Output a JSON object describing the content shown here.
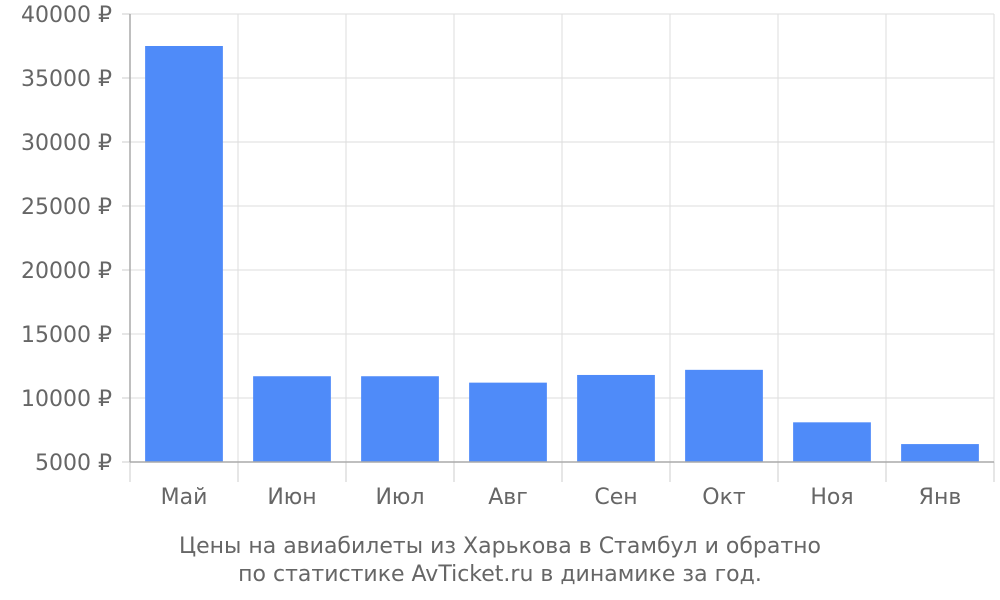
{
  "chart_data": {
    "type": "bar",
    "categories": [
      "Май",
      "Июн",
      "Июл",
      "Авг",
      "Сен",
      "Окт",
      "Ноя",
      "Янв"
    ],
    "values": [
      37500,
      11700,
      11700,
      11200,
      11800,
      12200,
      8100,
      6400
    ],
    "ylim": [
      5000,
      40000
    ],
    "yticks": [
      "5000 ₽",
      "10000 ₽",
      "15000 ₽",
      "20000 ₽",
      "25000 ₽",
      "30000 ₽",
      "35000 ₽",
      "40000 ₽"
    ],
    "ytick_values": [
      5000,
      10000,
      15000,
      20000,
      25000,
      30000,
      35000,
      40000
    ],
    "grid": true,
    "bar_color": "#4f8bf9"
  },
  "caption": {
    "line1": "Цены на авиабилеты из Харькова в Стамбул и обратно",
    "line2": "по статистике AvTicket.ru в динамике за год."
  }
}
